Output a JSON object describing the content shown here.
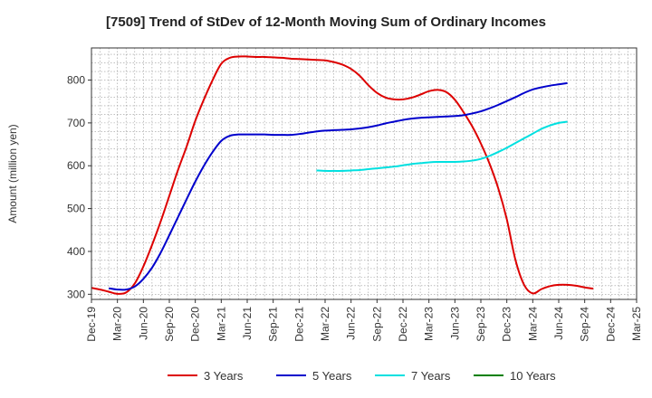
{
  "chart_data": {
    "type": "line",
    "title": "[7509]  Trend of StDev of 12-Month Moving Sum of Ordinary Incomes",
    "ylabel": "Amount (million yen)",
    "xlabel": "",
    "ylim": [
      288,
      875
    ],
    "yticks": [
      300,
      400,
      500,
      600,
      700,
      800
    ],
    "x_start": "2019-12",
    "x_end": "2025-03",
    "xticks": [
      "Dec-19",
      "Mar-20",
      "Jun-20",
      "Sep-20",
      "Dec-20",
      "Mar-21",
      "Jun-21",
      "Sep-21",
      "Dec-21",
      "Mar-22",
      "Jun-22",
      "Sep-22",
      "Dec-22",
      "Mar-23",
      "Jun-23",
      "Sep-23",
      "Dec-23",
      "Mar-24",
      "Jun-24",
      "Sep-24",
      "Dec-24",
      "Mar-25"
    ],
    "grid": true,
    "legend_position": "bottom",
    "series": [
      {
        "name": "3 Years",
        "color": "#dd0000",
        "points": [
          [
            "2019-12",
            315
          ],
          [
            "2020-01",
            311
          ],
          [
            "2020-02",
            306
          ],
          [
            "2020-03",
            301
          ],
          [
            "2020-04",
            304
          ],
          [
            "2020-05",
            325
          ],
          [
            "2020-06",
            365
          ],
          [
            "2020-07",
            415
          ],
          [
            "2020-08",
            470
          ],
          [
            "2020-09",
            530
          ],
          [
            "2020-10",
            590
          ],
          [
            "2020-11",
            645
          ],
          [
            "2020-12",
            705
          ],
          [
            "2021-01",
            755
          ],
          [
            "2021-02",
            800
          ],
          [
            "2021-03",
            838
          ],
          [
            "2021-04",
            852
          ],
          [
            "2021-05",
            855
          ],
          [
            "2021-06",
            855
          ],
          [
            "2021-07",
            854
          ],
          [
            "2021-08",
            854
          ],
          [
            "2021-09",
            853
          ],
          [
            "2021-10",
            852
          ],
          [
            "2021-11",
            850
          ],
          [
            "2021-12",
            849
          ],
          [
            "2022-01",
            848
          ],
          [
            "2022-02",
            847
          ],
          [
            "2022-03",
            846
          ],
          [
            "2022-04",
            842
          ],
          [
            "2022-05",
            836
          ],
          [
            "2022-06",
            826
          ],
          [
            "2022-07",
            810
          ],
          [
            "2022-08",
            788
          ],
          [
            "2022-09",
            770
          ],
          [
            "2022-10",
            759
          ],
          [
            "2022-11",
            755
          ],
          [
            "2022-12",
            755
          ],
          [
            "2023-01",
            759
          ],
          [
            "2023-02",
            766
          ],
          [
            "2023-03",
            774
          ],
          [
            "2023-04",
            777
          ],
          [
            "2023-05",
            772
          ],
          [
            "2023-06",
            754
          ],
          [
            "2023-07",
            725
          ],
          [
            "2023-08",
            692
          ],
          [
            "2023-09",
            652
          ],
          [
            "2023-10",
            605
          ],
          [
            "2023-11",
            548
          ],
          [
            "2023-12",
            475
          ],
          [
            "2024-01",
            380
          ],
          [
            "2024-02",
            322
          ],
          [
            "2024-03",
            302
          ],
          [
            "2024-04",
            312
          ],
          [
            "2024-05",
            319
          ],
          [
            "2024-06",
            322
          ],
          [
            "2024-07",
            322
          ],
          [
            "2024-08",
            320
          ],
          [
            "2024-09",
            316
          ],
          [
            "2024-10",
            313
          ]
        ]
      },
      {
        "name": "5 Years",
        "color": "#0000cc",
        "points": [
          [
            "2020-02",
            314
          ],
          [
            "2020-03",
            311
          ],
          [
            "2020-04",
            311
          ],
          [
            "2020-05",
            318
          ],
          [
            "2020-06",
            336
          ],
          [
            "2020-07",
            362
          ],
          [
            "2020-08",
            397
          ],
          [
            "2020-09",
            438
          ],
          [
            "2020-10",
            480
          ],
          [
            "2020-11",
            522
          ],
          [
            "2020-12",
            563
          ],
          [
            "2021-01",
            600
          ],
          [
            "2021-02",
            632
          ],
          [
            "2021-03",
            658
          ],
          [
            "2021-04",
            670
          ],
          [
            "2021-05",
            673
          ],
          [
            "2021-06",
            673
          ],
          [
            "2021-07",
            673
          ],
          [
            "2021-08",
            673
          ],
          [
            "2021-09",
            672
          ],
          [
            "2021-10",
            672
          ],
          [
            "2021-11",
            672
          ],
          [
            "2021-12",
            674
          ],
          [
            "2022-01",
            677
          ],
          [
            "2022-02",
            680
          ],
          [
            "2022-03",
            682
          ],
          [
            "2022-04",
            683
          ],
          [
            "2022-05",
            684
          ],
          [
            "2022-06",
            685
          ],
          [
            "2022-07",
            687
          ],
          [
            "2022-08",
            690
          ],
          [
            "2022-09",
            694
          ],
          [
            "2022-10",
            699
          ],
          [
            "2022-11",
            703
          ],
          [
            "2022-12",
            707
          ],
          [
            "2023-01",
            710
          ],
          [
            "2023-02",
            712
          ],
          [
            "2023-03",
            713
          ],
          [
            "2023-04",
            714
          ],
          [
            "2023-05",
            715
          ],
          [
            "2023-06",
            716
          ],
          [
            "2023-07",
            718
          ],
          [
            "2023-08",
            722
          ],
          [
            "2023-09",
            727
          ],
          [
            "2023-10",
            734
          ],
          [
            "2023-11",
            742
          ],
          [
            "2023-12",
            751
          ],
          [
            "2024-01",
            760
          ],
          [
            "2024-02",
            770
          ],
          [
            "2024-03",
            778
          ],
          [
            "2024-04",
            783
          ],
          [
            "2024-05",
            787
          ],
          [
            "2024-06",
            790
          ],
          [
            "2024-07",
            793
          ]
        ]
      },
      {
        "name": "7 Years",
        "color": "#00e0e0",
        "points": [
          [
            "2022-02",
            589
          ],
          [
            "2022-03",
            588
          ],
          [
            "2022-04",
            588
          ],
          [
            "2022-05",
            588
          ],
          [
            "2022-06",
            589
          ],
          [
            "2022-07",
            590
          ],
          [
            "2022-08",
            592
          ],
          [
            "2022-09",
            594
          ],
          [
            "2022-10",
            596
          ],
          [
            "2022-11",
            598
          ],
          [
            "2022-12",
            601
          ],
          [
            "2023-01",
            604
          ],
          [
            "2023-02",
            606
          ],
          [
            "2023-03",
            608
          ],
          [
            "2023-04",
            609
          ],
          [
            "2023-05",
            609
          ],
          [
            "2023-06",
            609
          ],
          [
            "2023-07",
            610
          ],
          [
            "2023-08",
            612
          ],
          [
            "2023-09",
            616
          ],
          [
            "2023-10",
            623
          ],
          [
            "2023-11",
            632
          ],
          [
            "2023-12",
            642
          ],
          [
            "2024-01",
            653
          ],
          [
            "2024-02",
            664
          ],
          [
            "2024-03",
            675
          ],
          [
            "2024-04",
            686
          ],
          [
            "2024-05",
            694
          ],
          [
            "2024-06",
            700
          ],
          [
            "2024-07",
            703
          ]
        ]
      },
      {
        "name": "10 Years",
        "color": "#008000",
        "points": []
      }
    ]
  }
}
